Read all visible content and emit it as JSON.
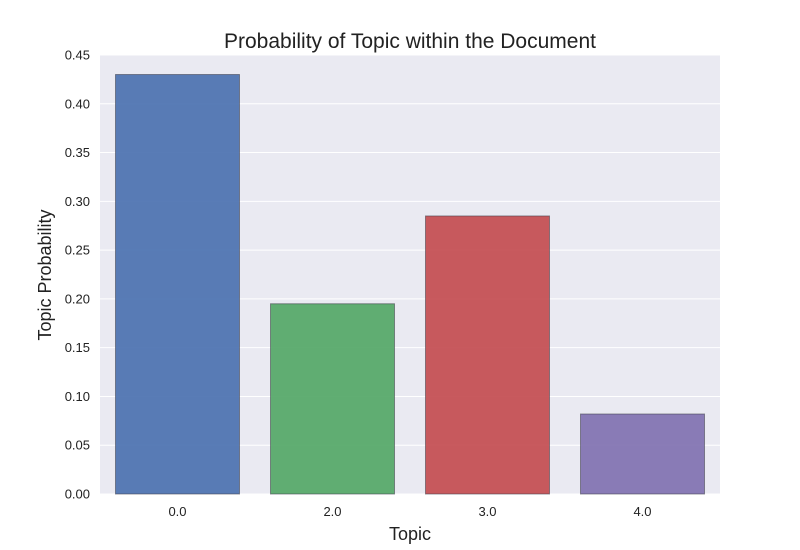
{
  "chart_data": {
    "type": "bar",
    "title": "Probability of Topic within the Document",
    "xlabel": "Topic",
    "ylabel": "Topic Probability",
    "categories": [
      "0.0",
      "2.0",
      "3.0",
      "4.0"
    ],
    "values": [
      0.43,
      0.195,
      0.285,
      0.082
    ],
    "ylim": [
      0,
      0.45
    ],
    "yticks": [
      "0.00",
      "0.05",
      "0.10",
      "0.15",
      "0.20",
      "0.25",
      "0.30",
      "0.35",
      "0.40",
      "0.45"
    ],
    "grid": "horizontal",
    "colors": {
      "background": "#EAEAF2",
      "grid": "#FFFFFF",
      "bars": [
        "#4C72B0",
        "#55A868",
        "#C44E52",
        "#8172B2"
      ]
    }
  }
}
